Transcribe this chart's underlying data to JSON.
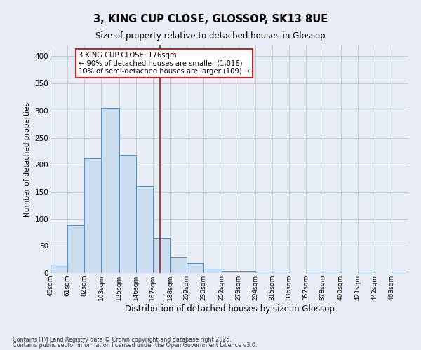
{
  "title": "3, KING CUP CLOSE, GLOSSOP, SK13 8UE",
  "subtitle": "Size of property relative to detached houses in Glossop",
  "xlabel": "Distribution of detached houses by size in Glossop",
  "ylabel": "Number of detached properties",
  "bar_color": "#ccddf0",
  "bar_edge_color": "#5b8db8",
  "background_color": "#e8edf5",
  "grid_color": "#c5cdd8",
  "red_line_x": 176,
  "red_line_color": "#9b1c1c",
  "bin_edges": [
    40,
    61,
    82,
    103,
    125,
    146,
    167,
    188,
    209,
    230,
    252,
    273,
    294,
    315,
    336,
    357,
    378,
    400,
    421,
    442,
    463,
    484
  ],
  "bar_heights": [
    15,
    88,
    212,
    305,
    217,
    160,
    65,
    30,
    18,
    8,
    4,
    4,
    3,
    3,
    0,
    3,
    3,
    0,
    3,
    0,
    2
  ],
  "tick_labels": [
    "40sqm",
    "61sqm",
    "82sqm",
    "103sqm",
    "125sqm",
    "146sqm",
    "167sqm",
    "188sqm",
    "209sqm",
    "230sqm",
    "252sqm",
    "273sqm",
    "294sqm",
    "315sqm",
    "336sqm",
    "357sqm",
    "378sqm",
    "400sqm",
    "421sqm",
    "442sqm",
    "463sqm"
  ],
  "ylim": [
    0,
    420
  ],
  "yticks": [
    0,
    50,
    100,
    150,
    200,
    250,
    300,
    350,
    400
  ],
  "annotation_line1": "3 KING CUP CLOSE: 176sqm",
  "annotation_line2": "← 90% of detached houses are smaller (1,016)",
  "annotation_line3": "10% of semi-detached houses are larger (109) →",
  "annotation_box_color": "#ffffff",
  "annotation_border_color": "#cc2222",
  "footer1": "Contains HM Land Registry data © Crown copyright and database right 2025.",
  "footer2": "Contains public sector information licensed under the Open Government Licence v3.0."
}
